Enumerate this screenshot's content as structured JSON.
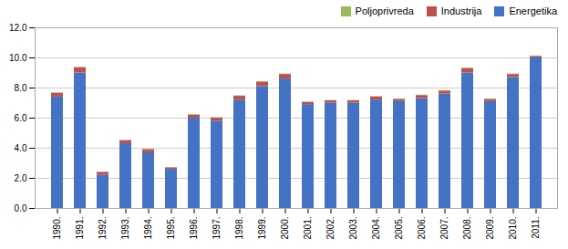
{
  "chart_data": {
    "type": "bar",
    "stacked": true,
    "categories": [
      "1990.",
      "1991.",
      "1992.",
      "1993.",
      "1994.",
      "1995.",
      "1996.",
      "1997.",
      "1998.",
      "1999.",
      "2000.",
      "2001.",
      "2002.",
      "2003.",
      "2004.",
      "2005.",
      "2006.",
      "2007.",
      "2008.",
      "2009.",
      "2010.",
      "2011."
    ],
    "series": [
      {
        "name": "Energetika",
        "color": "#4472C4",
        "values": [
          7.4,
          9.0,
          2.2,
          4.3,
          3.7,
          2.6,
          6.0,
          5.8,
          7.2,
          8.1,
          8.6,
          6.9,
          7.0,
          7.0,
          7.2,
          7.1,
          7.3,
          7.6,
          9.0,
          7.1,
          8.7,
          10.0
        ]
      },
      {
        "name": "Industrija",
        "color": "#C0504D",
        "values": [
          0.25,
          0.35,
          0.2,
          0.2,
          0.2,
          0.1,
          0.2,
          0.2,
          0.25,
          0.3,
          0.3,
          0.15,
          0.15,
          0.15,
          0.2,
          0.15,
          0.2,
          0.2,
          0.3,
          0.15,
          0.2,
          0.1
        ]
      },
      {
        "name": "Poljoprivreda",
        "color": "#9BBB59",
        "values": [
          0.03,
          0.03,
          0.02,
          0.03,
          0.03,
          0.02,
          0.03,
          0.03,
          0.03,
          0.03,
          0.03,
          0.02,
          0.02,
          0.02,
          0.03,
          0.02,
          0.03,
          0.03,
          0.03,
          0.02,
          0.03,
          0.03
        ]
      }
    ],
    "ylim": [
      0,
      12.0
    ],
    "yticks": [
      {
        "value": 0,
        "label": "0.0"
      },
      {
        "value": 2,
        "label": "2.0"
      },
      {
        "value": 4,
        "label": "4.0"
      },
      {
        "value": 6,
        "label": "6.0"
      },
      {
        "value": 8,
        "label": "8.0"
      },
      {
        "value": 10,
        "label": "10.0"
      },
      {
        "value": 12,
        "label": "12.0"
      }
    ],
    "grid": true,
    "legend": "upper right"
  }
}
